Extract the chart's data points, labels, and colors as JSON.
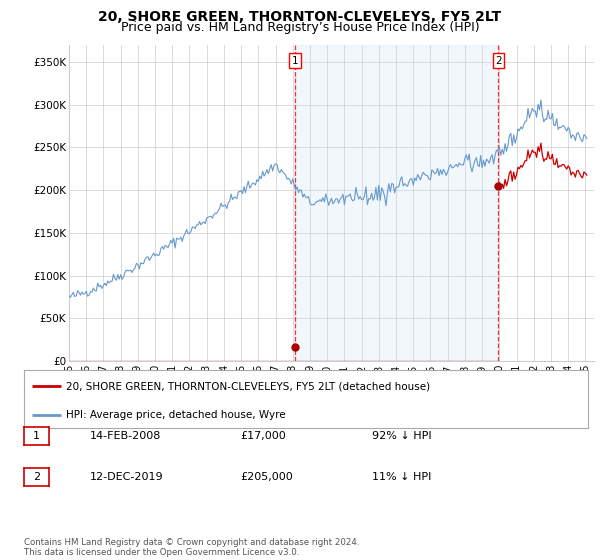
{
  "title": "20, SHORE GREEN, THORNTON-CLEVELEYS, FY5 2LT",
  "subtitle": "Price paid vs. HM Land Registry’s House Price Index (HPI)",
  "title_fontsize": 10,
  "subtitle_fontsize": 9,
  "ylabel_ticks": [
    "£0",
    "£50K",
    "£100K",
    "£150K",
    "£200K",
    "£250K",
    "£300K",
    "£350K"
  ],
  "ytick_values": [
    0,
    50000,
    100000,
    150000,
    200000,
    250000,
    300000,
    350000
  ],
  "ylim_max": 370000,
  "xlim_start": 1995.0,
  "xlim_end": 2025.5,
  "sale1_year": 2008.12,
  "sale1_price": 17000,
  "sale2_year": 2019.95,
  "sale2_price": 205000,
  "sale_labels": [
    "1",
    "2"
  ],
  "sale_dates": [
    "14-FEB-2008",
    "12-DEC-2019"
  ],
  "sale_amounts": [
    "£17,000",
    "£205,000"
  ],
  "sale_pct": [
    "92% ↓ HPI",
    "11% ↓ HPI"
  ],
  "vline_color": "#EE3333",
  "hpi_color": "#6699CC",
  "hpi_fill_color": "#CCE0F0",
  "sale_line_color": "#CC0000",
  "sale_dot_color": "#AA0000",
  "legend_label_property": "20, SHORE GREEN, THORNTON-CLEVELEYS, FY5 2LT (detached house)",
  "legend_label_hpi": "HPI: Average price, detached house, Wyre",
  "footnote": "Contains HM Land Registry data © Crown copyright and database right 2024.\nThis data is licensed under the Open Government Licence v3.0.",
  "bg_color": "#FFFFFF",
  "grid_color": "#CCCCCC",
  "xtick_labels": [
    "95",
    "96",
    "97",
    "98",
    "99",
    "00",
    "01",
    "02",
    "03",
    "04",
    "05",
    "06",
    "07",
    "08",
    "09",
    "10",
    "11",
    "12",
    "13",
    "14",
    "15",
    "16",
    "17",
    "18",
    "19",
    "20",
    "21",
    "22",
    "23",
    "24",
    "25"
  ],
  "xtick_years": [
    1995,
    1996,
    1997,
    1998,
    1999,
    2000,
    2001,
    2002,
    2003,
    2004,
    2005,
    2006,
    2007,
    2008,
    2009,
    2010,
    2011,
    2012,
    2013,
    2014,
    2015,
    2016,
    2017,
    2018,
    2019,
    2020,
    2021,
    2022,
    2023,
    2024,
    2025
  ]
}
